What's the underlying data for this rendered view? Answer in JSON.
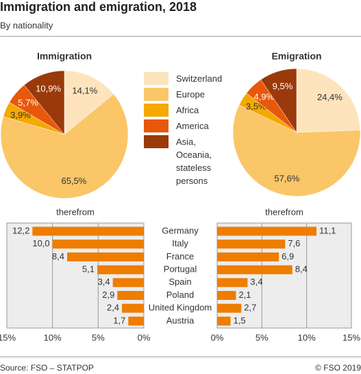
{
  "title": "Immigration and emigration, 2018",
  "subtitle": "By nationality",
  "source": "Source: FSO – STATPOP",
  "copyright": "© FSO 2019",
  "chart_data": [
    {
      "type": "pie",
      "categories": [
        "Switzerland",
        "Europe",
        "Africa",
        "America",
        "Asia, Oceania, stateless persons"
      ],
      "colors": [
        "#fde4bd",
        "#fac667",
        "#f5a800",
        "#e8580a",
        "#9a3a0a"
      ],
      "series": [
        {
          "name": "Immigration",
          "values": [
            14.1,
            65.5,
            3.9,
            5.7,
            10.9
          ],
          "value_labels": [
            "14,1%",
            "65,5%",
            "3,9%",
            "5,7%",
            "10,9%"
          ]
        },
        {
          "name": "Emigration",
          "values": [
            24.4,
            57.6,
            3.5,
            4.9,
            9.5
          ],
          "value_labels": [
            "24,4%",
            "57,6%",
            "3,5%",
            "4,9%",
            "9,5%"
          ]
        }
      ]
    },
    {
      "type": "bar",
      "orientation": "horizontal",
      "color": "#ee7d00",
      "categories": [
        "Germany",
        "Italy",
        "France",
        "Portugal",
        "Spain",
        "Poland",
        "United Kingdom",
        "Austria"
      ],
      "panels": [
        {
          "title": "therefrom",
          "x_reversed": true,
          "xlim": [
            0,
            15
          ],
          "xticks": [
            {
              "value": 15,
              "label": "15%"
            },
            {
              "value": 10,
              "label": "10%"
            },
            {
              "value": 5,
              "label": "5%"
            },
            {
              "value": 0,
              "label": "0%"
            }
          ],
          "values": [
            12.2,
            10.0,
            8.4,
            5.1,
            3.4,
            2.9,
            2.4,
            1.7
          ],
          "value_labels": [
            "12,2",
            "10,0",
            "8,4",
            "5,1",
            "3,4",
            "2,9",
            "2,4",
            "1,7"
          ]
        },
        {
          "title": "therefrom",
          "x_reversed": false,
          "xlim": [
            0,
            15
          ],
          "xticks": [
            {
              "value": 0,
              "label": "0%"
            },
            {
              "value": 5,
              "label": "5%"
            },
            {
              "value": 10,
              "label": "10%"
            },
            {
              "value": 15,
              "label": "15%"
            }
          ],
          "values": [
            11.1,
            7.6,
            6.9,
            8.4,
            3.4,
            2.1,
            2.7,
            1.5
          ],
          "value_labels": [
            "11,1",
            "7,6",
            "6,9",
            "8,4",
            "3,4",
            "2,1",
            "2,7",
            "1,5"
          ]
        }
      ]
    }
  ]
}
